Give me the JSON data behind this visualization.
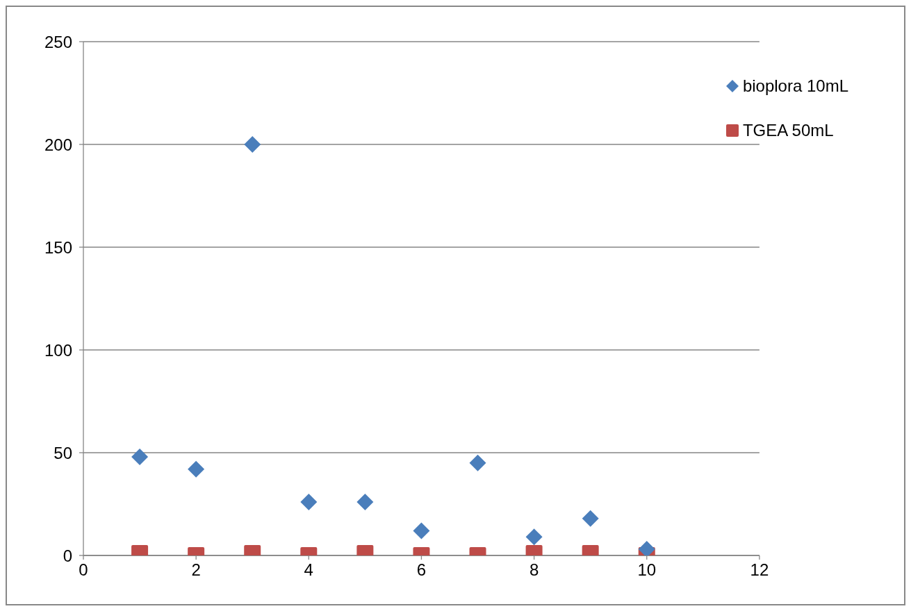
{
  "chart_data": {
    "type": "scatter",
    "x": [
      1,
      2,
      3,
      4,
      5,
      6,
      7,
      8,
      9,
      10
    ],
    "series": [
      {
        "name": "bioplora 10mL",
        "color": "#4a7ebb",
        "marker": "diamond",
        "values": [
          48,
          42,
          200,
          26,
          26,
          12,
          45,
          9,
          18,
          3
        ]
      },
      {
        "name": "TGEA 50mL",
        "color": "#be4b48",
        "marker": "square",
        "values": [
          1,
          0,
          1,
          0,
          1,
          0,
          0,
          1,
          1,
          0
        ]
      }
    ],
    "xlim": [
      0,
      12
    ],
    "xticks": [
      0,
      2,
      4,
      6,
      8,
      10,
      12
    ],
    "ylim": [
      0,
      250
    ],
    "yticks": [
      0,
      50,
      100,
      150,
      200,
      250
    ],
    "grid": "y",
    "legend": "top right"
  }
}
